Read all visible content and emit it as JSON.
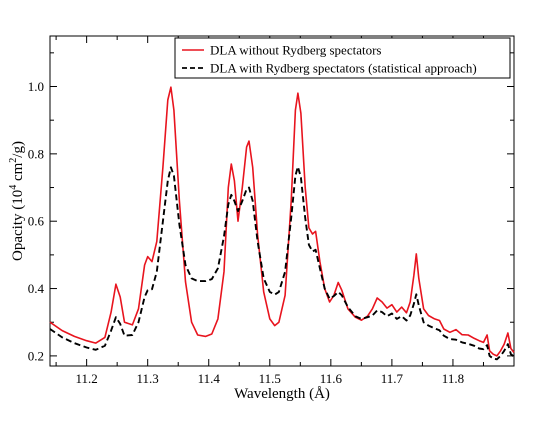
{
  "chart_data": {
    "type": "line",
    "xlabel": "Wavelength (Å)",
    "ylabel_parts": [
      "Opacity (10",
      "4",
      " cm",
      "2",
      "/g)"
    ],
    "xlim": [
      11.14,
      11.9
    ],
    "ylim": [
      0.17,
      1.15
    ],
    "xticks": [
      11.2,
      11.3,
      11.4,
      11.5,
      11.6,
      11.7,
      11.8
    ],
    "xtick_labels": [
      "11.2",
      "11.3",
      "11.4",
      "11.5",
      "11.6",
      "11.7",
      "11.8"
    ],
    "yticks": [
      0.2,
      0.4,
      0.6,
      0.8,
      1.0
    ],
    "ytick_labels": [
      "0.2",
      "0.4",
      "0.6",
      "0.8",
      "1.0"
    ],
    "grid": false,
    "legend_position": "top-right",
    "series": [
      {
        "name": "DLA without Rydberg spectators",
        "color": "#e8141e",
        "style": "solid",
        "points": [
          [
            11.14,
            0.3
          ],
          [
            11.16,
            0.275
          ],
          [
            11.18,
            0.258
          ],
          [
            11.2,
            0.245
          ],
          [
            11.215,
            0.238
          ],
          [
            11.23,
            0.255
          ],
          [
            11.24,
            0.33
          ],
          [
            11.248,
            0.413
          ],
          [
            11.255,
            0.375
          ],
          [
            11.262,
            0.3
          ],
          [
            11.275,
            0.292
          ],
          [
            11.285,
            0.34
          ],
          [
            11.295,
            0.47
          ],
          [
            11.3,
            0.495
          ],
          [
            11.307,
            0.48
          ],
          [
            11.315,
            0.54
          ],
          [
            11.325,
            0.76
          ],
          [
            11.333,
            0.96
          ],
          [
            11.338,
            0.998
          ],
          [
            11.343,
            0.93
          ],
          [
            11.352,
            0.66
          ],
          [
            11.362,
            0.42
          ],
          [
            11.372,
            0.3
          ],
          [
            11.382,
            0.262
          ],
          [
            11.395,
            0.258
          ],
          [
            11.405,
            0.265
          ],
          [
            11.415,
            0.31
          ],
          [
            11.425,
            0.45
          ],
          [
            11.432,
            0.7
          ],
          [
            11.437,
            0.77
          ],
          [
            11.442,
            0.72
          ],
          [
            11.448,
            0.6
          ],
          [
            11.455,
            0.7
          ],
          [
            11.462,
            0.82
          ],
          [
            11.466,
            0.838
          ],
          [
            11.472,
            0.76
          ],
          [
            11.48,
            0.56
          ],
          [
            11.49,
            0.39
          ],
          [
            11.5,
            0.31
          ],
          [
            11.508,
            0.29
          ],
          [
            11.515,
            0.3
          ],
          [
            11.525,
            0.38
          ],
          [
            11.535,
            0.66
          ],
          [
            11.542,
            0.93
          ],
          [
            11.546,
            0.98
          ],
          [
            11.551,
            0.92
          ],
          [
            11.558,
            0.7
          ],
          [
            11.564,
            0.58
          ],
          [
            11.57,
            0.562
          ],
          [
            11.575,
            0.57
          ],
          [
            11.582,
            0.48
          ],
          [
            11.59,
            0.4
          ],
          [
            11.598,
            0.36
          ],
          [
            11.605,
            0.38
          ],
          [
            11.612,
            0.418
          ],
          [
            11.618,
            0.395
          ],
          [
            11.628,
            0.34
          ],
          [
            11.64,
            0.315
          ],
          [
            11.65,
            0.306
          ],
          [
            11.66,
            0.318
          ],
          [
            11.668,
            0.34
          ],
          [
            11.676,
            0.372
          ],
          [
            11.684,
            0.36
          ],
          [
            11.692,
            0.342
          ],
          [
            11.7,
            0.352
          ],
          [
            11.708,
            0.33
          ],
          [
            11.716,
            0.345
          ],
          [
            11.724,
            0.328
          ],
          [
            11.73,
            0.36
          ],
          [
            11.736,
            0.44
          ],
          [
            11.74,
            0.503
          ],
          [
            11.744,
            0.43
          ],
          [
            11.752,
            0.34
          ],
          [
            11.76,
            0.32
          ],
          [
            11.77,
            0.31
          ],
          [
            11.778,
            0.305
          ],
          [
            11.785,
            0.28
          ],
          [
            11.795,
            0.27
          ],
          [
            11.805,
            0.278
          ],
          [
            11.815,
            0.263
          ],
          [
            11.825,
            0.262
          ],
          [
            11.835,
            0.252
          ],
          [
            11.843,
            0.245
          ],
          [
            11.85,
            0.24
          ],
          [
            11.856,
            0.262
          ],
          [
            11.86,
            0.215
          ],
          [
            11.866,
            0.205
          ],
          [
            11.872,
            0.2
          ],
          [
            11.878,
            0.215
          ],
          [
            11.884,
            0.235
          ],
          [
            11.89,
            0.268
          ],
          [
            11.895,
            0.222
          ],
          [
            11.9,
            0.21
          ]
        ]
      },
      {
        "name": "DLA with Rydberg spectators (statistical approach)",
        "color": "#000000",
        "style": "dashed",
        "points": [
          [
            11.14,
            0.28
          ],
          [
            11.16,
            0.255
          ],
          [
            11.18,
            0.238
          ],
          [
            11.2,
            0.225
          ],
          [
            11.215,
            0.218
          ],
          [
            11.23,
            0.23
          ],
          [
            11.24,
            0.275
          ],
          [
            11.248,
            0.315
          ],
          [
            11.255,
            0.295
          ],
          [
            11.262,
            0.26
          ],
          [
            11.275,
            0.262
          ],
          [
            11.285,
            0.3
          ],
          [
            11.295,
            0.375
          ],
          [
            11.3,
            0.395
          ],
          [
            11.307,
            0.398
          ],
          [
            11.315,
            0.45
          ],
          [
            11.325,
            0.6
          ],
          [
            11.333,
            0.72
          ],
          [
            11.338,
            0.76
          ],
          [
            11.343,
            0.735
          ],
          [
            11.352,
            0.59
          ],
          [
            11.362,
            0.47
          ],
          [
            11.372,
            0.43
          ],
          [
            11.382,
            0.422
          ],
          [
            11.395,
            0.422
          ],
          [
            11.405,
            0.428
          ],
          [
            11.415,
            0.46
          ],
          [
            11.425,
            0.555
          ],
          [
            11.432,
            0.65
          ],
          [
            11.437,
            0.678
          ],
          [
            11.442,
            0.66
          ],
          [
            11.448,
            0.63
          ],
          [
            11.455,
            0.66
          ],
          [
            11.462,
            0.695
          ],
          [
            11.466,
            0.7
          ],
          [
            11.472,
            0.66
          ],
          [
            11.48,
            0.54
          ],
          [
            11.49,
            0.43
          ],
          [
            11.5,
            0.39
          ],
          [
            11.508,
            0.382
          ],
          [
            11.515,
            0.39
          ],
          [
            11.525,
            0.45
          ],
          [
            11.535,
            0.61
          ],
          [
            11.542,
            0.735
          ],
          [
            11.546,
            0.762
          ],
          [
            11.551,
            0.73
          ],
          [
            11.558,
            0.61
          ],
          [
            11.564,
            0.53
          ],
          [
            11.57,
            0.51
          ],
          [
            11.575,
            0.515
          ],
          [
            11.582,
            0.46
          ],
          [
            11.59,
            0.4
          ],
          [
            11.598,
            0.37
          ],
          [
            11.605,
            0.378
          ],
          [
            11.612,
            0.39
          ],
          [
            11.618,
            0.38
          ],
          [
            11.628,
            0.345
          ],
          [
            11.64,
            0.318
          ],
          [
            11.65,
            0.31
          ],
          [
            11.66,
            0.315
          ],
          [
            11.668,
            0.32
          ],
          [
            11.676,
            0.335
          ],
          [
            11.684,
            0.33
          ],
          [
            11.692,
            0.318
          ],
          [
            11.7,
            0.326
          ],
          [
            11.708,
            0.31
          ],
          [
            11.716,
            0.318
          ],
          [
            11.724,
            0.305
          ],
          [
            11.73,
            0.32
          ],
          [
            11.736,
            0.355
          ],
          [
            11.74,
            0.383
          ],
          [
            11.744,
            0.35
          ],
          [
            11.752,
            0.3
          ],
          [
            11.76,
            0.29
          ],
          [
            11.77,
            0.282
          ],
          [
            11.778,
            0.276
          ],
          [
            11.785,
            0.26
          ],
          [
            11.795,
            0.25
          ],
          [
            11.805,
            0.248
          ],
          [
            11.815,
            0.24
          ],
          [
            11.825,
            0.236
          ],
          [
            11.835,
            0.23
          ],
          [
            11.843,
            0.222
          ],
          [
            11.85,
            0.22
          ],
          [
            11.856,
            0.232
          ],
          [
            11.86,
            0.2
          ],
          [
            11.866,
            0.192
          ],
          [
            11.872,
            0.19
          ],
          [
            11.878,
            0.2
          ],
          [
            11.884,
            0.215
          ],
          [
            11.89,
            0.235
          ],
          [
            11.895,
            0.205
          ],
          [
            11.9,
            0.198
          ]
        ]
      }
    ]
  }
}
